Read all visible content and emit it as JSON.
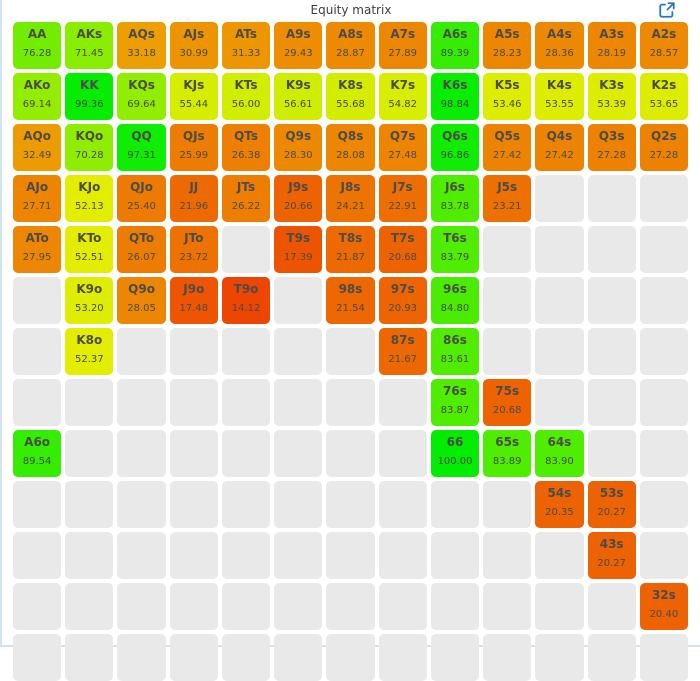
{
  "panel": {
    "title": "Equity matrix"
  },
  "icons": {
    "popout": "external-link-icon"
  },
  "colors": {
    "background": "#ffffff",
    "panel_border": "#cfe3f1",
    "empty_cell": "#e9e9e9",
    "cell_text": "#4b4b4b",
    "icon_blue": "#2678be",
    "scale_low": "red",
    "scale_mid": "yellow",
    "scale_high": "green"
  },
  "chart_data": {
    "type": "heatmap",
    "title": "Equity matrix",
    "description": "13x13 poker hand equity matrix; pairs on diagonal, suited above, offsuit below; cell color maps equity 0=red, 50=yellow, 100=green",
    "row_ranks": [
      "A",
      "K",
      "Q",
      "J",
      "T",
      "9",
      "8",
      "7",
      "6",
      "5",
      "4",
      "3",
      "2"
    ],
    "col_ranks": [
      "A",
      "K",
      "Q",
      "J",
      "T",
      "9",
      "8",
      "7",
      "6",
      "5",
      "4",
      "3",
      "2"
    ],
    "color_rule": "hue = equity * 1.2 in HSL",
    "rows": [
      [
        {
          "h": "AA",
          "e": 76.28
        },
        {
          "h": "AKs",
          "e": 71.45
        },
        {
          "h": "AQs",
          "e": 33.18
        },
        {
          "h": "AJs",
          "e": 30.99
        },
        {
          "h": "ATs",
          "e": 31.33
        },
        {
          "h": "A9s",
          "e": 29.43
        },
        {
          "h": "A8s",
          "e": 28.87
        },
        {
          "h": "A7s",
          "e": 27.89
        },
        {
          "h": "A6s",
          "e": 89.39
        },
        {
          "h": "A5s",
          "e": 28.23
        },
        {
          "h": "A4s",
          "e": 28.36
        },
        {
          "h": "A3s",
          "e": 28.19
        },
        {
          "h": "A2s",
          "e": 28.57
        }
      ],
      [
        {
          "h": "AKo",
          "e": 69.14
        },
        {
          "h": "KK",
          "e": 99.36
        },
        {
          "h": "KQs",
          "e": 69.64
        },
        {
          "h": "KJs",
          "e": 55.44
        },
        {
          "h": "KTs",
          "e": 56.0
        },
        {
          "h": "K9s",
          "e": 56.61
        },
        {
          "h": "K8s",
          "e": 55.68
        },
        {
          "h": "K7s",
          "e": 54.82
        },
        {
          "h": "K6s",
          "e": 98.84
        },
        {
          "h": "K5s",
          "e": 53.46
        },
        {
          "h": "K4s",
          "e": 53.55
        },
        {
          "h": "K3s",
          "e": 53.39
        },
        {
          "h": "K2s",
          "e": 53.65
        }
      ],
      [
        {
          "h": "AQo",
          "e": 32.49
        },
        {
          "h": "KQo",
          "e": 70.28
        },
        {
          "h": "QQ",
          "e": 97.31
        },
        {
          "h": "QJs",
          "e": 25.99
        },
        {
          "h": "QTs",
          "e": 26.38
        },
        {
          "h": "Q9s",
          "e": 28.3
        },
        {
          "h": "Q8s",
          "e": 28.08
        },
        {
          "h": "Q7s",
          "e": 27.48
        },
        {
          "h": "Q6s",
          "e": 96.86
        },
        {
          "h": "Q5s",
          "e": 27.42
        },
        {
          "h": "Q4s",
          "e": 27.42
        },
        {
          "h": "Q3s",
          "e": 27.28
        },
        {
          "h": "Q2s",
          "e": 27.28
        }
      ],
      [
        {
          "h": "AJo",
          "e": 27.71
        },
        {
          "h": "KJo",
          "e": 52.13
        },
        {
          "h": "QJo",
          "e": 25.4
        },
        {
          "h": "JJ",
          "e": 21.96
        },
        {
          "h": "JTs",
          "e": 26.22
        },
        {
          "h": "J9s",
          "e": 20.66
        },
        {
          "h": "J8s",
          "e": 24.21
        },
        {
          "h": "J7s",
          "e": 22.91
        },
        {
          "h": "J6s",
          "e": 83.78
        },
        {
          "h": "J5s",
          "e": 23.21
        },
        null,
        null,
        null
      ],
      [
        {
          "h": "ATo",
          "e": 27.95
        },
        {
          "h": "KTo",
          "e": 52.51
        },
        {
          "h": "QTo",
          "e": 26.07
        },
        {
          "h": "JTo",
          "e": 23.72
        },
        null,
        {
          "h": "T9s",
          "e": 17.39
        },
        {
          "h": "T8s",
          "e": 21.87
        },
        {
          "h": "T7s",
          "e": 20.68
        },
        {
          "h": "T6s",
          "e": 83.79
        },
        null,
        null,
        null,
        null
      ],
      [
        null,
        {
          "h": "K9o",
          "e": 53.2
        },
        {
          "h": "Q9o",
          "e": 28.05
        },
        {
          "h": "J9o",
          "e": 17.48
        },
        {
          "h": "T9o",
          "e": 14.12
        },
        null,
        {
          "h": "98s",
          "e": 21.54
        },
        {
          "h": "97s",
          "e": 20.93
        },
        {
          "h": "96s",
          "e": 84.8
        },
        null,
        null,
        null,
        null
      ],
      [
        null,
        {
          "h": "K8o",
          "e": 52.37
        },
        null,
        null,
        null,
        null,
        null,
        {
          "h": "87s",
          "e": 21.67
        },
        {
          "h": "86s",
          "e": 83.61
        },
        null,
        null,
        null,
        null
      ],
      [
        null,
        null,
        null,
        null,
        null,
        null,
        null,
        null,
        {
          "h": "76s",
          "e": 83.87
        },
        {
          "h": "75s",
          "e": 20.68
        },
        null,
        null,
        null
      ],
      [
        {
          "h": "A6o",
          "e": 89.54
        },
        null,
        null,
        null,
        null,
        null,
        null,
        null,
        {
          "h": "66",
          "e": 100.0
        },
        {
          "h": "65s",
          "e": 83.89
        },
        {
          "h": "64s",
          "e": 83.9
        },
        null,
        null
      ],
      [
        null,
        null,
        null,
        null,
        null,
        null,
        null,
        null,
        null,
        null,
        {
          "h": "54s",
          "e": 20.35
        },
        {
          "h": "53s",
          "e": 20.27
        },
        null
      ],
      [
        null,
        null,
        null,
        null,
        null,
        null,
        null,
        null,
        null,
        null,
        null,
        {
          "h": "43s",
          "e": 20.27
        },
        null
      ],
      [
        null,
        null,
        null,
        null,
        null,
        null,
        null,
        null,
        null,
        null,
        null,
        null,
        {
          "h": "32s",
          "e": 20.4
        }
      ],
      [
        null,
        null,
        null,
        null,
        null,
        null,
        null,
        null,
        null,
        null,
        null,
        null,
        null
      ]
    ]
  }
}
